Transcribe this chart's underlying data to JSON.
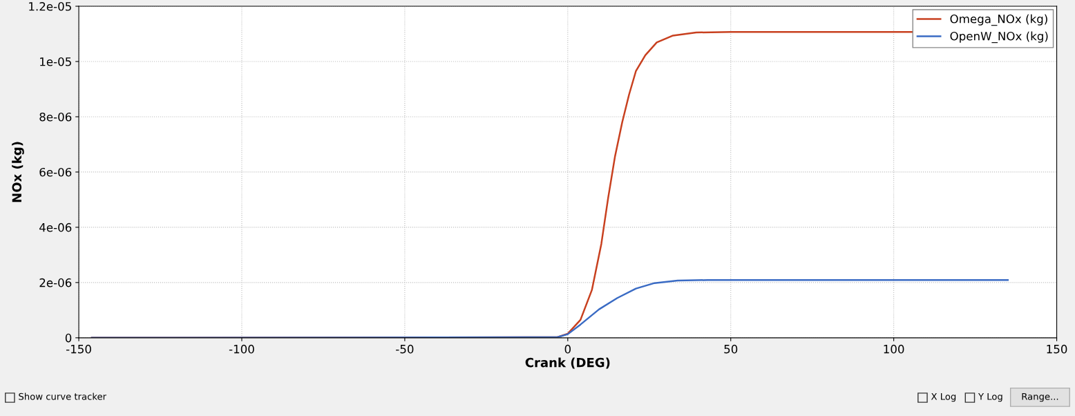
{
  "chart_data": {
    "type": "line",
    "xlabel": "Crank (DEG)",
    "ylabel": "NOx (kg)",
    "xlim": [
      -150,
      150
    ],
    "xticks": [
      -150,
      -100,
      -50,
      0,
      50,
      100,
      150
    ],
    "ylim": [
      0,
      1.2e-05
    ],
    "yticks": [
      {
        "value": 0,
        "label": "0"
      },
      {
        "value": 2e-06,
        "label": "2e-06"
      },
      {
        "value": 4e-06,
        "label": "4e-06"
      },
      {
        "value": 6e-06,
        "label": "6e-06"
      },
      {
        "value": 8e-06,
        "label": "8e-06"
      },
      {
        "value": 1e-05,
        "label": "1e-05"
      },
      {
        "value": 1.2e-05,
        "label": "1.2e-05"
      }
    ],
    "grid": true,
    "legend": "top right",
    "marker": "none",
    "line_style": "solid",
    "series": [
      {
        "name": "Omega_NOx (kg)",
        "color": "#c8401f",
        "x": [
          -146,
          -3.2,
          0,
          3.9,
          7.4,
          10.3,
          12.4,
          14.5,
          16.7,
          18.8,
          20.9,
          23.8,
          27.3,
          32.3,
          39.4,
          50,
          106
        ],
        "values": [
          0,
          2e-08,
          1.5e-07,
          6.5e-07,
          1.73e-06,
          3.4e-06,
          5.07e-06,
          6.57e-06,
          7.8e-06,
          8.8e-06,
          9.65e-06,
          1.023e-05,
          1.069e-05,
          1.094e-05,
          1.105e-05,
          1.107e-05,
          1.107e-05
        ]
      },
      {
        "name": "OpenW_NOx (kg)",
        "color": "#3a6bc4",
        "x": [
          -146,
          -3.2,
          0,
          3.9,
          9.6,
          15.2,
          20.9,
          26.6,
          33.7,
          42.9,
          135
        ],
        "values": [
          0,
          2e-08,
          1.3e-07,
          4.8e-07,
          1.03e-06,
          1.44e-06,
          1.78e-06,
          1.98e-06,
          2.07e-06,
          2.09e-06,
          2.09e-06
        ]
      }
    ],
    "annotations": [
      "Show curve tracker",
      "X Log",
      "Y Log",
      "Range..."
    ]
  }
}
